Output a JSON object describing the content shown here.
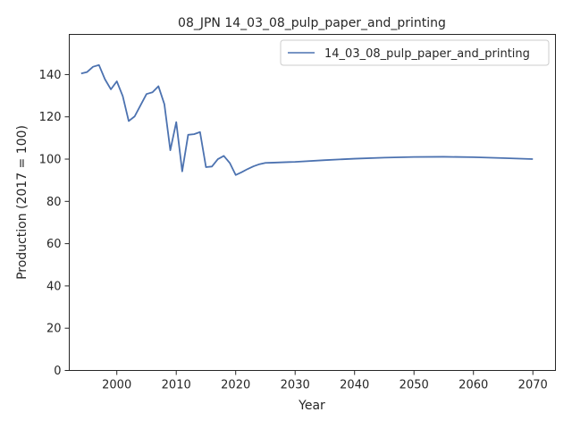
{
  "chart_data": {
    "type": "line",
    "title": "08_JPN 14_03_08_pulp_paper_and_printing",
    "xlabel": "Year",
    "ylabel": "Production (2017 = 100)",
    "xlim": [
      1992.0,
      2073.8
    ],
    "ylim": [
      0,
      159
    ],
    "xticks": [
      2000,
      2010,
      2020,
      2030,
      2040,
      2050,
      2060,
      2070
    ],
    "yticks": [
      0,
      20,
      40,
      60,
      80,
      100,
      120,
      140
    ],
    "grid": false,
    "legend_position": "top-right",
    "line_color": "#4c72b0",
    "series": [
      {
        "name": "14_03_08_pulp_paper_and_printing",
        "x": [
          1994,
          1995,
          1996,
          1997,
          1998,
          1999,
          2000,
          2001,
          2002,
          2003,
          2004,
          2005,
          2006,
          2007,
          2008,
          2009,
          2010,
          2011,
          2012,
          2013,
          2014,
          2015,
          2016,
          2017,
          2018,
          2019,
          2020,
          2021,
          2022,
          2023,
          2024,
          2025,
          2026,
          2027,
          2028,
          2029,
          2030,
          2035,
          2040,
          2045,
          2050,
          2055,
          2060,
          2065,
          2070
        ],
        "values": [
          140.5,
          141.2,
          143.7,
          144.5,
          137.8,
          133.0,
          136.8,
          129.8,
          118.0,
          120.2,
          125.5,
          130.8,
          131.6,
          134.5,
          126.0,
          104.2,
          117.5,
          94.2,
          111.5,
          111.8,
          112.8,
          96.2,
          96.5,
          100.0,
          101.5,
          98.2,
          92.5,
          93.8,
          95.3,
          96.6,
          97.6,
          98.2,
          98.3,
          98.4,
          98.5,
          98.6,
          98.7,
          99.5,
          100.2,
          100.7,
          101.0,
          101.1,
          100.9,
          100.5,
          100.0
        ]
      }
    ]
  }
}
